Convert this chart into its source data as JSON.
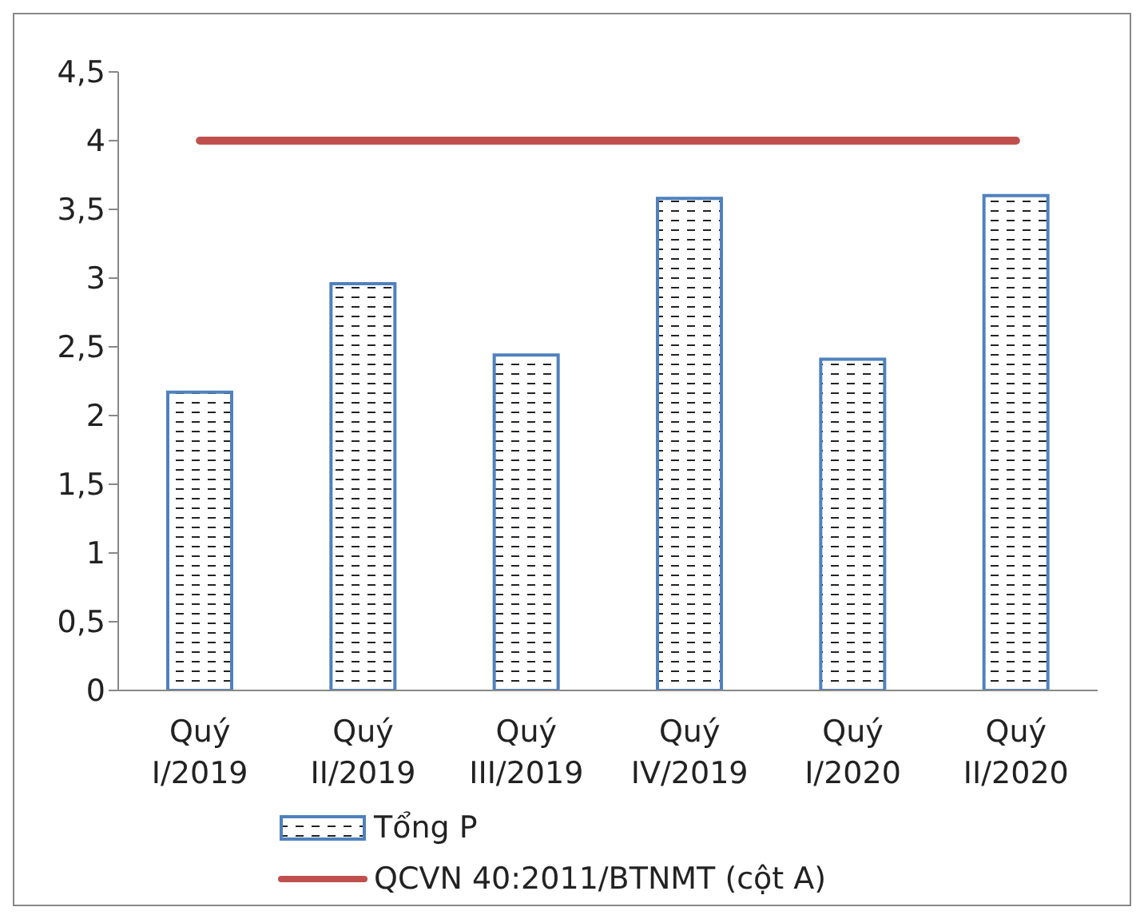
{
  "chart_data": {
    "type": "bar",
    "categories": [
      "Quý I/2019",
      "Quý II/2019",
      "Quý III/2019",
      "Quý IV/2019",
      "Quý I/2020",
      "Quý II/2020"
    ],
    "series": [
      {
        "name": "Tổng P",
        "color": "#4f81bd",
        "values": [
          2.17,
          2.96,
          2.44,
          3.58,
          2.41,
          3.6
        ]
      },
      {
        "name": "QCVN 40:2011/BTNMT (cột A)",
        "type": "line",
        "color": "#c0504d",
        "values": [
          4,
          4,
          4,
          4,
          4,
          4
        ]
      }
    ],
    "ylim": [
      0,
      4.5
    ],
    "yticks": [
      0,
      {
        "value": 0.5,
        "label": "0,5"
      },
      1,
      {
        "value": 1.5,
        "label": "1,5"
      },
      2,
      {
        "value": 2.5,
        "label": "2,5"
      },
      3,
      {
        "value": 3.5,
        "label": "3,5"
      },
      4,
      {
        "value": 4.5,
        "label": "4,5"
      }
    ],
    "grid": false,
    "legend": "bottom",
    "marker": "none"
  }
}
